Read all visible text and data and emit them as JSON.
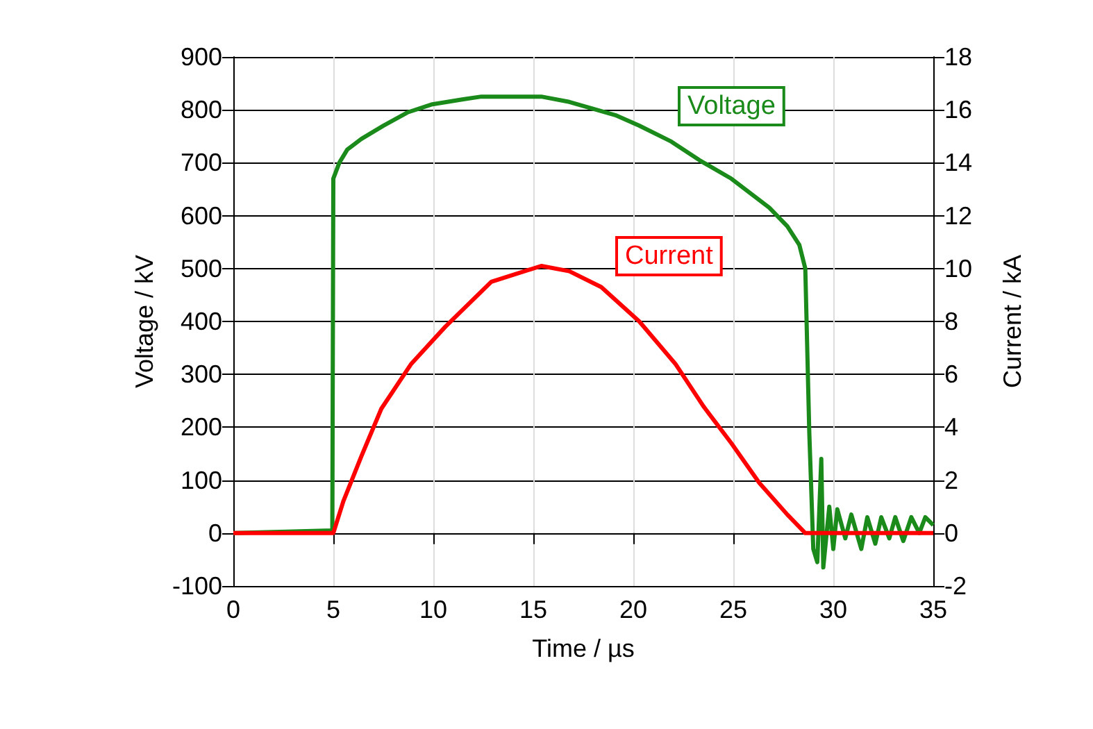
{
  "chart_data": {
    "type": "line",
    "xlabel": "Time / µs",
    "ylabel": "Voltage / kV",
    "y2label": "Current / kA",
    "xlim": [
      0,
      35
    ],
    "xticks": [
      0,
      5,
      10,
      15,
      20,
      25,
      30,
      35
    ],
    "ylim": [
      -100,
      900
    ],
    "yticks": [
      -100,
      0,
      100,
      200,
      300,
      400,
      500,
      600,
      700,
      800,
      900
    ],
    "y2lim": [
      -2,
      18
    ],
    "y2ticks": [
      -2,
      0,
      2,
      4,
      6,
      8,
      10,
      12,
      14,
      16,
      18
    ],
    "grid": true,
    "legend": false,
    "marker": "none",
    "line_style": "solid",
    "series": [
      {
        "name": "Voltage",
        "color": "#1a8a1a",
        "x": [
          0,
          4.95,
          5,
          5.3,
          5.7,
          6.4,
          7.5,
          8.7,
          9.9,
          11.5,
          12.4,
          15.4,
          16.8,
          19.1,
          20.3,
          21.9,
          23.3,
          24.9,
          26.8,
          27.7,
          28.3,
          28.6,
          28.8,
          29.0,
          29.2,
          29.4,
          29.5,
          29.8,
          30.0,
          30.2,
          30.6,
          30.9,
          31.4,
          31.7,
          32.1,
          32.4,
          32.8,
          33.1,
          33.5,
          33.9,
          34.3,
          34.6,
          35
        ],
        "values": [
          0,
          5,
          670,
          700,
          725,
          745,
          770,
          795,
          810,
          820,
          825,
          825,
          815,
          790,
          770,
          740,
          705,
          670,
          615,
          580,
          545,
          500,
          190,
          -30,
          -55,
          140,
          -65,
          50,
          -30,
          45,
          -10,
          35,
          -30,
          30,
          -20,
          30,
          -10,
          30,
          -15,
          30,
          0,
          30,
          15
        ]
      },
      {
        "name": "Current",
        "color": "#ff0000",
        "axis": "y2",
        "x": [
          0,
          5,
          5.5,
          6.4,
          7.4,
          8.9,
          10.6,
          12.9,
          15.4,
          16.8,
          18.4,
          20.3,
          22.1,
          23.5,
          24.9,
          26.3,
          27.7,
          28.6,
          35
        ],
        "values": [
          0,
          0,
          1.2,
          2.9,
          4.7,
          6.4,
          7.8,
          9.5,
          10.1,
          9.9,
          9.3,
          8.0,
          6.4,
          4.8,
          3.4,
          1.9,
          0.7,
          0,
          0
        ]
      }
    ]
  }
}
